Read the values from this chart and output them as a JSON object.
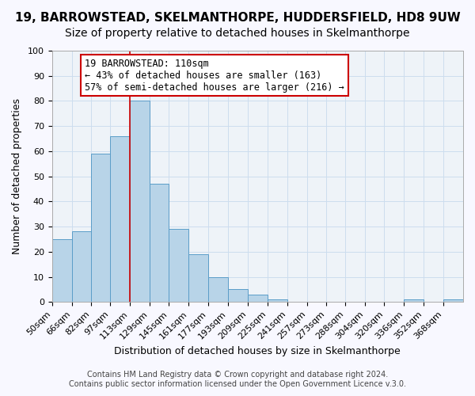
{
  "title": "19, BARROWSTEAD, SKELMANTHORPE, HUDDERSFIELD, HD8 9UW",
  "subtitle": "Size of property relative to detached houses in Skelmanthorpe",
  "xlabel": "Distribution of detached houses by size in Skelmanthorpe",
  "ylabel": "Number of detached properties",
  "bin_labels": [
    "50sqm",
    "66sqm",
    "82sqm",
    "97sqm",
    "113sqm",
    "129sqm",
    "145sqm",
    "161sqm",
    "177sqm",
    "193sqm",
    "209sqm",
    "225sqm",
    "241sqm",
    "257sqm",
    "273sqm",
    "288sqm",
    "304sqm",
    "320sqm",
    "336sqm",
    "352sqm",
    "368sqm"
  ],
  "bin_edges": [
    50,
    66,
    82,
    97,
    113,
    129,
    145,
    161,
    177,
    193,
    209,
    225,
    241,
    257,
    273,
    288,
    304,
    320,
    336,
    352,
    368
  ],
  "bar_values": [
    25,
    28,
    59,
    66,
    80,
    47,
    29,
    19,
    10,
    5,
    3,
    1,
    0,
    0,
    0,
    0,
    0,
    0,
    1,
    0,
    1
  ],
  "bar_color": "#b8d4e8",
  "bar_edge_color": "#5a9dc8",
  "ylim": [
    0,
    100
  ],
  "yticks": [
    0,
    10,
    20,
    30,
    40,
    50,
    60,
    70,
    80,
    90,
    100
  ],
  "property_line_x": 113,
  "property_line_color": "#cc0000",
  "annotation_title": "19 BARROWSTEAD: 110sqm",
  "annotation_line1": "← 43% of detached houses are smaller (163)",
  "annotation_line2": "57% of semi-detached houses are larger (216) →",
  "annotation_box_color": "#cc0000",
  "footer_line1": "Contains HM Land Registry data © Crown copyright and database right 2024.",
  "footer_line2": "Contains public sector information licensed under the Open Government Licence v.3.0.",
  "background_color": "#f0f4f8",
  "grid_color": "#ccddee",
  "title_fontsize": 11,
  "subtitle_fontsize": 10,
  "axis_label_fontsize": 9,
  "tick_fontsize": 8,
  "annotation_fontsize": 8.5,
  "footer_fontsize": 7
}
